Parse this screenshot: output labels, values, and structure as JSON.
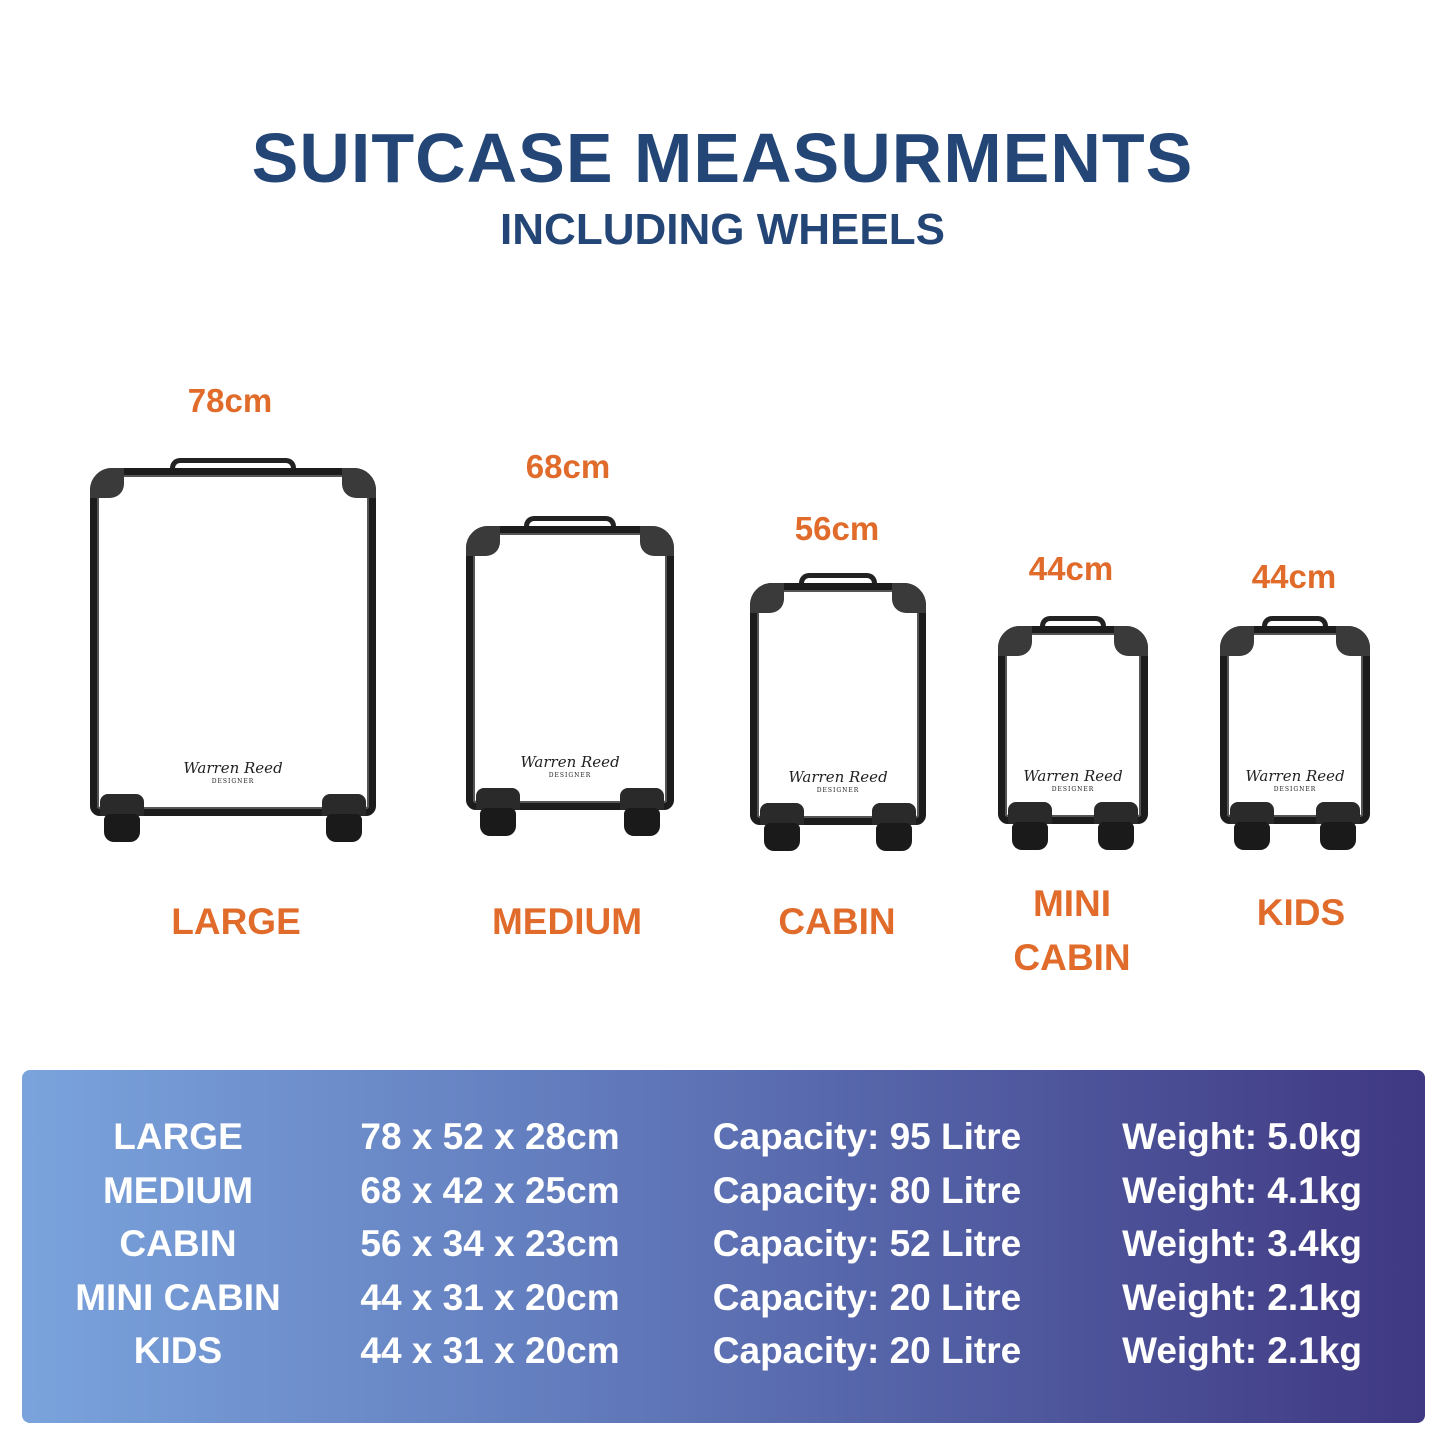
{
  "header": {
    "title": "SUITCASE MEASURMENTS",
    "subtitle": "INCLUDING WHEELS"
  },
  "accent_color": "#e06b2a",
  "title_color": "#234677",
  "brand_logo": {
    "name": "Warren Reed",
    "tagline": "DESIGNER"
  },
  "suitcases": [
    {
      "name": "LARGE",
      "height": "78cm"
    },
    {
      "name": "MEDIUM",
      "height": "68cm"
    },
    {
      "name": "CABIN",
      "height": "56cm"
    },
    {
      "name_line1": "MINI",
      "name_line2": "CABIN",
      "height": "44cm"
    },
    {
      "name": "KIDS",
      "height": "44cm"
    }
  ],
  "specs": [
    {
      "size": "LARGE",
      "dimensions": "78 x 52 x 28cm",
      "capacity": "Capacity: 95 Litre",
      "weight": "Weight: 5.0kg"
    },
    {
      "size": "MEDIUM",
      "dimensions": "68 x 42 x 25cm",
      "capacity": "Capacity: 80 Litre",
      "weight": "Weight: 4.1kg"
    },
    {
      "size": "CABIN",
      "dimensions": "56 x 34 x 23cm",
      "capacity": "Capacity: 52 Litre",
      "weight": "Weight: 3.4kg"
    },
    {
      "size": "MINI CABIN",
      "dimensions": "44 x 31 x 20cm",
      "capacity": "Capacity: 20 Litre",
      "weight": "Weight: 2.1kg"
    },
    {
      "size": "KIDS",
      "dimensions": "44 x 31 x 20cm",
      "capacity": "Capacity: 20 Litre",
      "weight": "Weight: 2.1kg"
    }
  ]
}
